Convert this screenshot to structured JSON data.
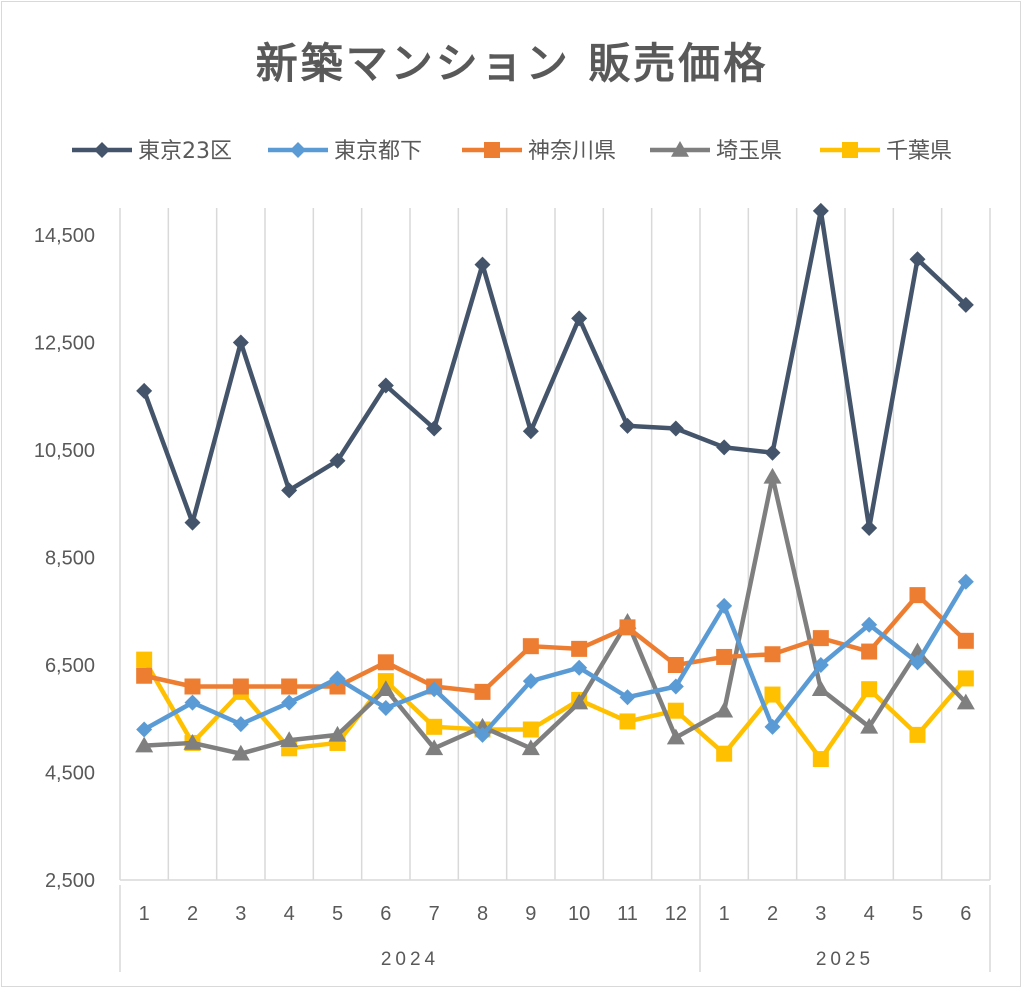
{
  "chart_data": {
    "type": "line",
    "title": "新築マンション 販売価格",
    "xlabel": "",
    "ylabel": "",
    "ylim": [
      2500,
      15000
    ],
    "yticks": [
      "2,500",
      "4,500",
      "6,500",
      "8,500",
      "10,500",
      "12,500",
      "14,500"
    ],
    "ytick_values": [
      2500,
      4500,
      6500,
      8500,
      10500,
      12500,
      14500
    ],
    "categories": [
      "1",
      "2",
      "3",
      "4",
      "5",
      "6",
      "7",
      "8",
      "9",
      "10",
      "11",
      "12",
      "1",
      "2",
      "3",
      "4",
      "5",
      "6"
    ],
    "years": [
      {
        "label": "2024",
        "start": 0,
        "end": 11
      },
      {
        "label": "2025",
        "start": 12,
        "end": 17
      }
    ],
    "grid": "vertical",
    "legend_position": "top",
    "series": [
      {
        "name": "東京23区",
        "color": "#44546a",
        "marker": "diamond",
        "values": [
          11600,
          9150,
          12500,
          9750,
          10300,
          11700,
          10900,
          13950,
          10850,
          12950,
          10950,
          10900,
          10550,
          10450,
          14950,
          9050,
          14050,
          13200
        ]
      },
      {
        "name": "東京都下",
        "color": "#5b9bd5",
        "marker": "diamond",
        "values": [
          5300,
          5800,
          5400,
          5800,
          6250,
          5700,
          6050,
          5200,
          6200,
          6450,
          5900,
          6100,
          7600,
          5350,
          6500,
          7250,
          6550,
          8050
        ]
      },
      {
        "name": "神奈川県",
        "color": "#ed7d31",
        "marker": "square",
        "values": [
          6300,
          6100,
          6100,
          6100,
          6100,
          6550,
          6100,
          6000,
          6850,
          6800,
          7200,
          6500,
          6650,
          6700,
          7000,
          6750,
          7800,
          6950
        ]
      },
      {
        "name": "埼玉県",
        "color": "#7f7f7f",
        "marker": "triangle",
        "values": [
          5000,
          5050,
          4850,
          5100,
          5200,
          6050,
          4950,
          5350,
          4950,
          5800,
          7300,
          5150,
          5650,
          10000,
          6050,
          5350,
          6750,
          5800
        ]
      },
      {
        "name": "千葉県",
        "color": "#ffc000",
        "marker": "square",
        "values": [
          6600,
          5050,
          6000,
          4950,
          5050,
          6200,
          5350,
          5300,
          5300,
          5850,
          5450,
          5650,
          4850,
          5950,
          4750,
          6050,
          5200,
          6250
        ]
      }
    ]
  }
}
